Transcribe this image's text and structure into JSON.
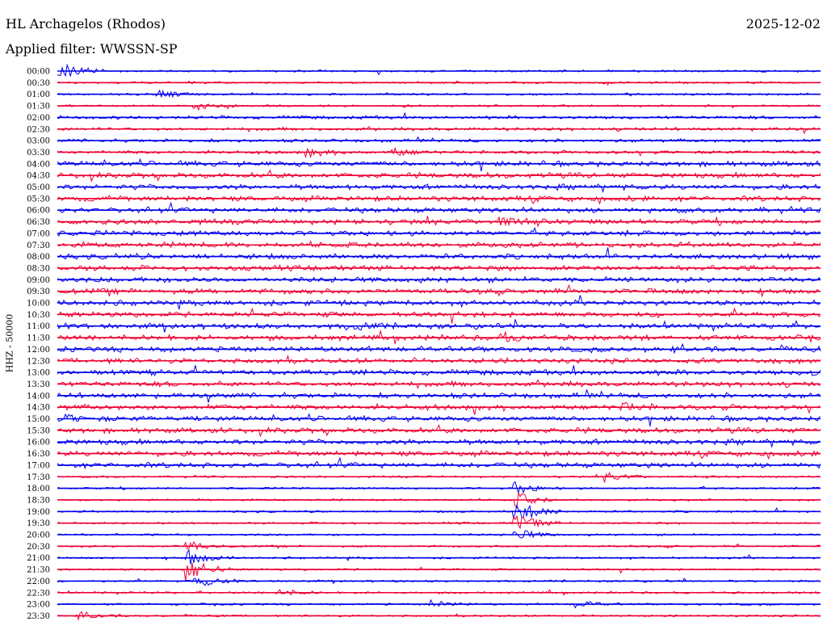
{
  "header": {
    "title": "HL Archagelos (Rhodos)",
    "date": "2025-12-02",
    "filter": "Applied filter: WWSSN-SP"
  },
  "chart_data": {
    "type": "helicorder",
    "ylabel": "HHZ - 50000",
    "row_labels": [
      "00:00",
      "00:30",
      "01:00",
      "01:30",
      "02:00",
      "02:30",
      "03:00",
      "03:30",
      "04:00",
      "04:30",
      "05:00",
      "05:30",
      "06:00",
      "06:30",
      "07:00",
      "07:30",
      "08:00",
      "08:30",
      "09:00",
      "09:30",
      "10:00",
      "10:30",
      "11:00",
      "11:30",
      "12:00",
      "12:30",
      "13:00",
      "13:30",
      "14:00",
      "14:30",
      "15:00",
      "15:30",
      "16:00",
      "16:30",
      "17:00",
      "17:30",
      "18:00",
      "18:30",
      "19:00",
      "19:30",
      "20:00",
      "20:30",
      "21:00",
      "21:30",
      "22:00",
      "22:30",
      "23:00",
      "23:30"
    ],
    "colors": [
      "#0000ee",
      "#ee0033"
    ],
    "events": [
      {
        "row": 0,
        "t": 0.0,
        "amp": 3.0
      },
      {
        "row": 2,
        "t": 0.13,
        "amp": 1.2
      },
      {
        "row": 3,
        "t": 0.18,
        "amp": 1.0
      },
      {
        "row": 7,
        "t": 0.33,
        "amp": 0.9
      },
      {
        "row": 7,
        "t": 0.44,
        "amp": 0.9
      },
      {
        "row": 13,
        "t": 0.58,
        "amp": 0.9
      },
      {
        "row": 22,
        "t": 0.38,
        "amp": 1.0
      },
      {
        "row": 23,
        "t": 0.58,
        "amp": 1.0
      },
      {
        "row": 26,
        "t": 0.99,
        "amp": 1.0
      },
      {
        "row": 29,
        "t": 0.74,
        "amp": 0.9
      },
      {
        "row": 30,
        "t": 0.01,
        "amp": 0.8
      },
      {
        "row": 35,
        "t": 0.72,
        "amp": 1.2
      },
      {
        "row": 36,
        "t": 0.6,
        "amp": 1.5
      },
      {
        "row": 37,
        "t": 0.6,
        "amp": 2.0
      },
      {
        "row": 38,
        "t": 0.6,
        "amp": 3.5
      },
      {
        "row": 39,
        "t": 0.6,
        "amp": 2.5
      },
      {
        "row": 40,
        "t": 0.6,
        "amp": 1.5
      },
      {
        "row": 41,
        "t": 0.17,
        "amp": 1.5
      },
      {
        "row": 42,
        "t": 0.17,
        "amp": 2.0
      },
      {
        "row": 43,
        "t": 0.17,
        "amp": 3.5
      },
      {
        "row": 44,
        "t": 0.18,
        "amp": 1.8
      },
      {
        "row": 45,
        "t": 0.29,
        "amp": 0.9
      },
      {
        "row": 46,
        "t": 0.49,
        "amp": 0.9
      },
      {
        "row": 46,
        "t": 0.68,
        "amp": 0.9
      },
      {
        "row": 47,
        "t": 0.03,
        "amp": 0.9
      }
    ]
  }
}
